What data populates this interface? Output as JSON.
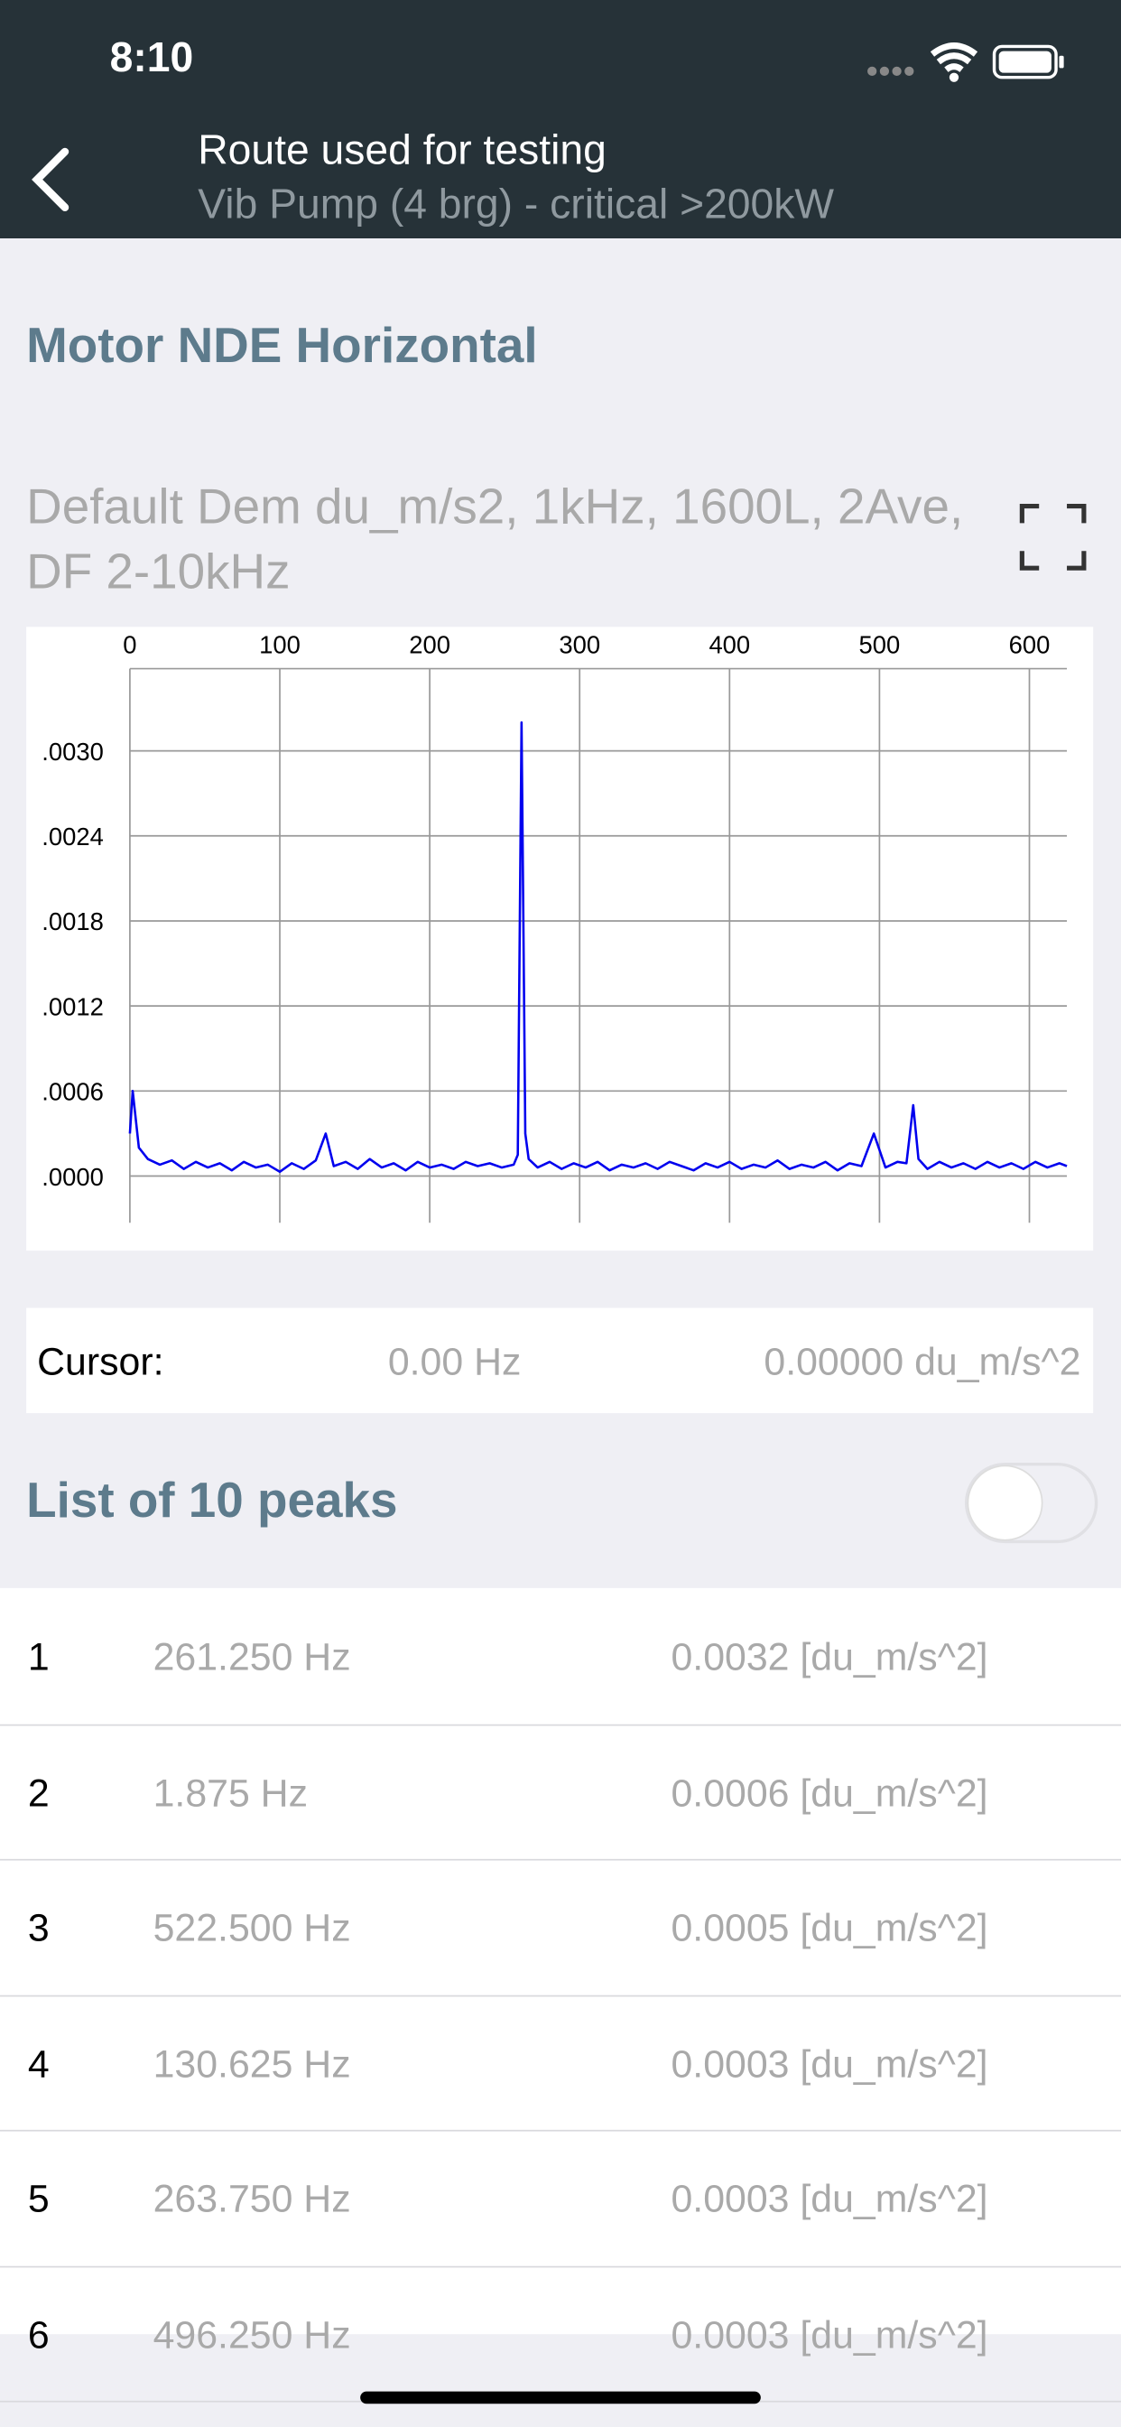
{
  "status": {
    "time": "8:10"
  },
  "header": {
    "title": "Route used for testing",
    "subtitle": "Vib Pump (4 brg) - critical >200kW"
  },
  "section_title": "Motor NDE Horizontal",
  "chart_data": {
    "type": "line",
    "title": "Default Dem du_m/s2, 1kHz, 1600L, 2Ave, DF 2-10kHz",
    "x": [
      0,
      1.875,
      6,
      12,
      20,
      28,
      36,
      44,
      52,
      60,
      68,
      76,
      84,
      92,
      100,
      108,
      116,
      124,
      130.625,
      136,
      144,
      152,
      160,
      168,
      176,
      184,
      192,
      200,
      208,
      216,
      224,
      232,
      240,
      248,
      256,
      258.75,
      261.25,
      263.75,
      266,
      272,
      280,
      288,
      296,
      304,
      312,
      320,
      328,
      336,
      344,
      352,
      360,
      368,
      376,
      384,
      392,
      400,
      408,
      416,
      424,
      432,
      440,
      448,
      456,
      464,
      472,
      480,
      488,
      496.25,
      504,
      512,
      518,
      522.5,
      526,
      532,
      540,
      548,
      556,
      564,
      572,
      580,
      588,
      596,
      604,
      612,
      620,
      625
    ],
    "series": [
      {
        "color": "#0000ee",
        "values": [
          0.0003,
          0.0006,
          0.0002,
          0.00012,
          8e-05,
          0.00011,
          5e-05,
          0.0001,
          6e-05,
          9e-05,
          4e-05,
          0.0001,
          6e-05,
          8e-05,
          3e-05,
          9e-05,
          5e-05,
          0.00011,
          0.0003,
          7e-05,
          0.0001,
          5e-05,
          0.00012,
          6e-05,
          9e-05,
          4e-05,
          0.0001,
          6e-05,
          8e-05,
          5e-05,
          0.0001,
          7e-05,
          9e-05,
          6e-05,
          8e-05,
          0.00015,
          0.0032,
          0.0003,
          0.00012,
          6e-05,
          0.0001,
          5e-05,
          9e-05,
          6e-05,
          0.0001,
          4e-05,
          8e-05,
          6e-05,
          9e-05,
          5e-05,
          0.0001,
          7e-05,
          4e-05,
          9e-05,
          6e-05,
          0.0001,
          5e-05,
          8e-05,
          6e-05,
          0.00011,
          5e-05,
          8e-05,
          6e-05,
          0.0001,
          4e-05,
          9e-05,
          7e-05,
          0.0003,
          6e-05,
          0.0001,
          9e-05,
          0.0005,
          0.00012,
          5e-05,
          0.0001,
          6e-05,
          9e-05,
          5e-05,
          0.0001,
          6e-05,
          9e-05,
          5e-05,
          0.0001,
          6e-05,
          9e-05,
          7e-05
        ]
      }
    ],
    "xlim": [
      0,
      625
    ],
    "xticks": [
      0,
      100,
      200,
      300,
      400,
      500,
      600
    ],
    "ylim": [
      -0.00033,
      0.00358
    ],
    "yticks": [
      {
        "value": 0,
        "label": ".0000"
      },
      {
        "value": 0.0006,
        "label": ".0006"
      },
      {
        "value": 0.0012,
        "label": ".0012"
      },
      {
        "value": 0.0018,
        "label": ".0018"
      },
      {
        "value": 0.0024,
        "label": ".0024"
      },
      {
        "value": 0.003,
        "label": ".0030"
      }
    ],
    "grid": true
  },
  "cursor": {
    "label": "Cursor:",
    "frequency": "0.00 Hz",
    "amplitude": "0.00000 du_m/s^2"
  },
  "peaks": {
    "title": "List of 10 peaks",
    "rows": [
      [
        "1",
        "261.250 Hz",
        "0.0032 [du_m/s^2]"
      ],
      [
        "2",
        "1.875 Hz",
        "0.0006 [du_m/s^2]"
      ],
      [
        "3",
        "522.500 Hz",
        "0.0005 [du_m/s^2]"
      ],
      [
        "4",
        "130.625 Hz",
        "0.0003 [du_m/s^2]"
      ],
      [
        "5",
        "263.750 Hz",
        "0.0003 [du_m/s^2]"
      ],
      [
        "6",
        "496.250 Hz",
        "0.0003 [du_m/s^2]"
      ]
    ]
  }
}
